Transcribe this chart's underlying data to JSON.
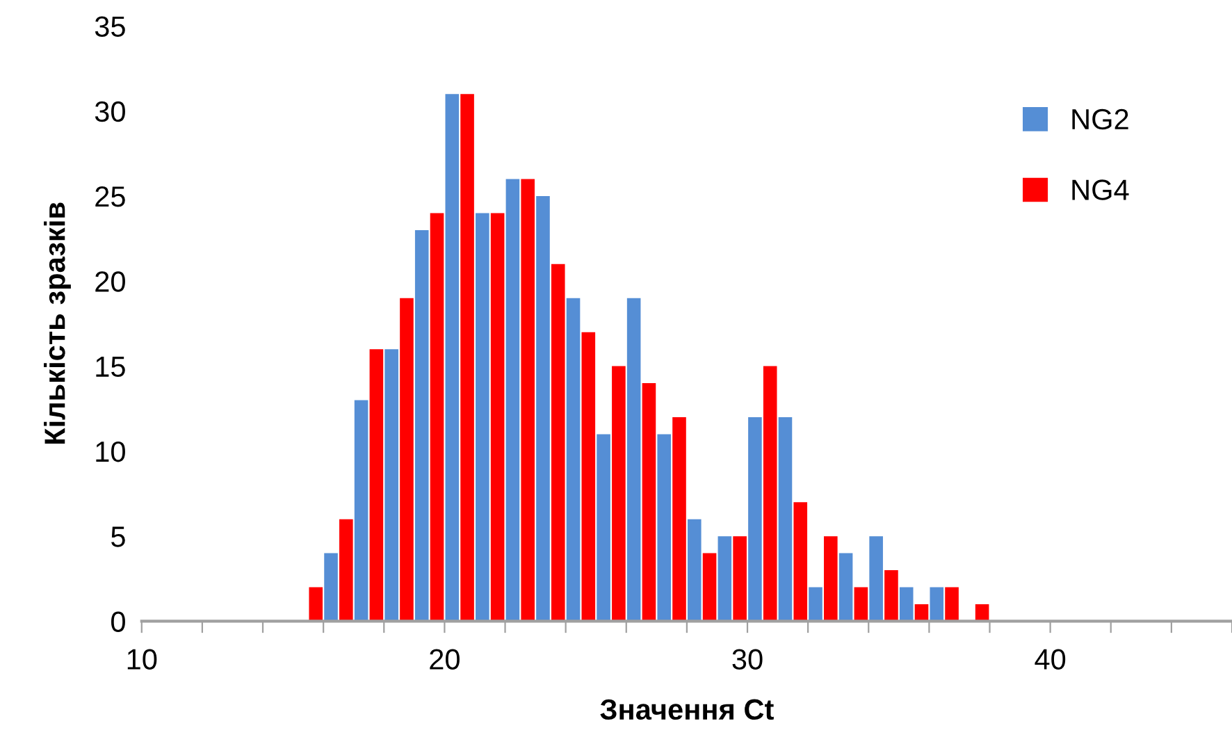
{
  "chart_data": {
    "type": "bar",
    "xlabel": "Значення Ct",
    "ylabel": "Кількість зразків",
    "xlim": [
      10,
      46
    ],
    "xticks": [
      10,
      {
        "value": 12,
        "label": null
      },
      {
        "value": 14,
        "label": null
      },
      {
        "value": 16,
        "label": null
      },
      {
        "value": 18,
        "label": null
      },
      20,
      {
        "value": 22,
        "label": null
      },
      {
        "value": 24,
        "label": null
      },
      {
        "value": 26,
        "label": null
      },
      {
        "value": 28,
        "label": null
      },
      30,
      {
        "value": 32,
        "label": null
      },
      {
        "value": 34,
        "label": null
      },
      {
        "value": 36,
        "label": null
      },
      {
        "value": 38,
        "label": null
      },
      40,
      {
        "value": 42,
        "label": null
      },
      {
        "value": 44,
        "label": null
      },
      {
        "value": 46,
        "label": null
      }
    ],
    "ylim": [
      0,
      35
    ],
    "yticks": [
      0,
      5,
      10,
      15,
      20,
      25,
      30,
      35
    ],
    "grid": false,
    "legend": "right",
    "series": [
      {
        "name": "NG2",
        "color": "#558ed5",
        "x": [
          15.25,
          16.25,
          17.25,
          18.25,
          19.25,
          20.25,
          21.25,
          22.25,
          23.25,
          24.25,
          25.25,
          26.25,
          27.25,
          28.25,
          29.25,
          30.25,
          31.25,
          32.25,
          33.25,
          34.25,
          35.25,
          36.25,
          37.25
        ],
        "values": [
          0,
          4,
          13,
          16,
          23,
          31,
          24,
          26,
          25,
          19,
          11,
          19,
          11,
          6,
          5,
          12,
          12,
          2,
          4,
          5,
          2,
          2,
          0
        ]
      },
      {
        "name": "NG4",
        "color": "#ff0000",
        "x": [
          15.75,
          16.75,
          17.75,
          18.75,
          19.75,
          20.75,
          21.75,
          22.75,
          23.75,
          24.75,
          25.75,
          26.75,
          27.75,
          28.75,
          29.75,
          30.75,
          31.75,
          32.75,
          33.75,
          34.75,
          35.75,
          36.75,
          37.75
        ],
        "values": [
          2,
          6,
          16,
          19,
          24,
          31,
          24,
          26,
          21,
          17,
          15,
          14,
          12,
          4,
          5,
          15,
          7,
          5,
          2,
          3,
          1,
          2,
          1
        ]
      }
    ]
  }
}
